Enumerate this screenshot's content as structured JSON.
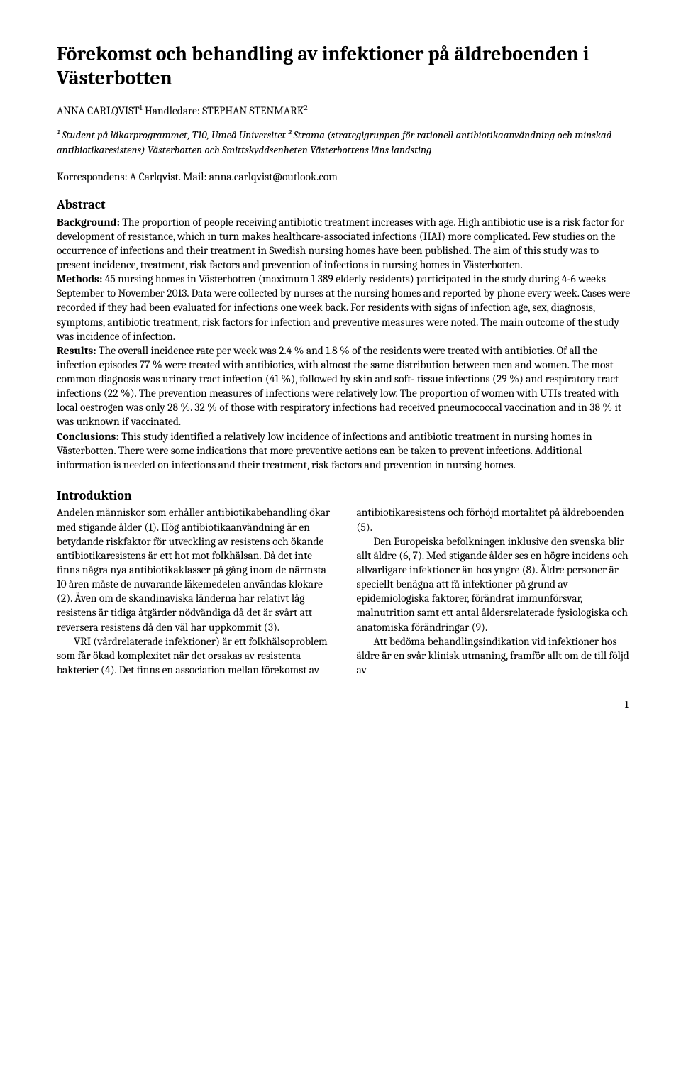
{
  "title": "Förekomst och behandling av infektioner på äldreboenden i Västerbotten",
  "byline_author": "ANNA CARLQVIST",
  "byline_sup1": "1",
  "byline_handledare_label": " Handledare: ",
  "byline_handledare": "STEPHAN STENMARK",
  "byline_sup2": "2",
  "affiliations": "¹ Student på läkarprogrammet, T10, Umeå Universitet  ² Strama (strategigruppen för rationell antibiotikaanvändning och minskad antibiotikaresistens) Västerbotten och Smittskyddsenheten Västerbottens läns landsting",
  "correspondence": "Korrespondens: A Carlqvist. Mail: anna.carlqvist@outlook.com",
  "abstract_heading": "Abstract",
  "abstract": {
    "background_label": "Background:",
    "background_text": " The proportion of people receiving antibiotic treatment increases with age. High antibiotic use is a risk factor for development of resistance, which in turn makes healthcare-associated infections (HAI) more complicated.  Few studies on the occurrence of infections and their treatment in Swedish nursing homes have been published. The aim of this study was to present incidence, treatment, risk factors and prevention of infections in nursing homes in Västerbotten.",
    "methods_label": "Methods:",
    "methods_text": " 45 nursing homes in Västerbotten (maximum 1 389 elderly residents) participated in the study during 4-6 weeks September to November 2013. Data were collected by nurses at the nursing homes and reported by phone every week. Cases were recorded if they had been evaluated for infections one week back. For residents with signs of infection age, sex, diagnosis, symptoms, antibiotic treatment, risk factors for infection and preventive measures were noted. The main outcome of the study was incidence of infection.",
    "results_label": "Results:",
    "results_text": " The overall incidence rate per week was 2.4 % and 1.8 % of the residents were treated with antibiotics. Of all the infection episodes 77 % were treated with antibiotics, with almost the same distribution between men and women. The most common diagnosis was urinary tract infection (41 %), followed by skin and soft- tissue infections (29 %) and respiratory tract infections (22 %). The prevention measures of infections were relatively low. The proportion of women with UTIs treated with local oestrogen was only 28 %. 32 % of those with respiratory infections had received pneumococcal vaccination and in 38 % it was unknown if vaccinated.",
    "conclusions_label": "Conclusions:",
    "conclusions_text": " This study identified a relatively low incidence of infections and antibiotic treatment in nursing homes in Västerbotten. There were some indications that more preventive actions can be taken to prevent infections. Additional information is needed on infections and their treatment, risk factors and prevention in nursing homes."
  },
  "intro_heading": "Introduktion",
  "intro": {
    "p1": "Andelen människor som erhåller antibiotikabehandling ökar med stigande ålder (1). Hög antibiotikaanvändning är en betydande riskfaktor för utveckling av resistens och ökande antibiotikaresistens är ett hot mot folkhälsan. Då det inte finns några nya antibiotikaklasser på gång inom de närmsta 10 åren måste de nuvarande läkemedelen användas klokare (2). Även om de skandinaviska länderna har relativt låg resistens är tidiga åtgärder nödvändiga då det är svårt att reversera resistens då den väl har uppkommit (3).",
    "p2": "VRI (vårdrelaterade infektioner) är ett folkhälsoproblem som får ökad komplexitet när det orsakas av resistenta bakterier (4). Det finns en association mellan förekomst av antibiotikaresistens och förhöjd mortalitet på äldreboenden (5).",
    "p3": "Den Europeiska befolkningen inklusive den svenska blir allt äldre (6, 7). Med stigande ålder ses en högre incidens och allvarligare infektioner än hos yngre (8). Äldre personer är speciellt benägna att få infektioner på grund av epidemiologiska faktorer, förändrat immunförsvar, malnutrition samt ett antal åldersrelaterade fysiologiska och anatomiska förändringar (9).",
    "p4": "Att bedöma behandlingsindikation vid infektioner hos äldre är en svår klinisk utmaning, framför allt om de till följd av"
  },
  "page_number": "1"
}
